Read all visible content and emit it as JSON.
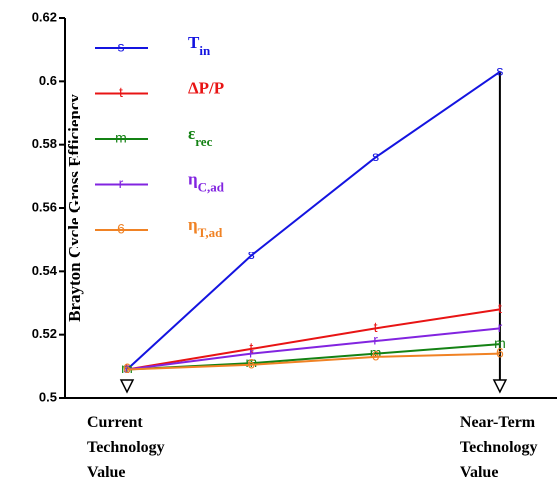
{
  "chart_data": {
    "type": "line",
    "y_label": "Brayton Cycle Gross Efficiency",
    "categories": [
      "Current Technology Value",
      null,
      null,
      "Near-Term Technology Value"
    ],
    "ylim": [
      0.5,
      0.62
    ],
    "yticks": [
      {
        "value": 0.5,
        "label": "0.5"
      },
      0.52,
      0.54,
      0.56,
      0.58,
      {
        "value": 0.6,
        "label": "0.6"
      },
      0.62
    ],
    "series": [
      {
        "name": "T",
        "subscript": "in",
        "marker": "s",
        "color": "#1414e0",
        "values": [
          0.509,
          0.545,
          0.576,
          0.603
        ]
      },
      {
        "name": "ΔP/P",
        "marker": "t",
        "color": "#e81414",
        "values": [
          0.509,
          0.5155,
          0.522,
          0.528
        ]
      },
      {
        "name": "ε",
        "subscript": "rec",
        "marker": "m",
        "color": "#148214",
        "values": [
          0.509,
          0.511,
          0.514,
          0.517
        ]
      },
      {
        "name": "η",
        "subscript": "C,ad",
        "marker": "r",
        "color": "#8224e0",
        "values": [
          0.509,
          0.514,
          0.518,
          0.522
        ]
      },
      {
        "name": "η",
        "subscript": "T,ad",
        "marker": "6",
        "color": "#f08224",
        "values": [
          0.509,
          0.5105,
          0.513,
          0.514
        ]
      }
    ]
  }
}
